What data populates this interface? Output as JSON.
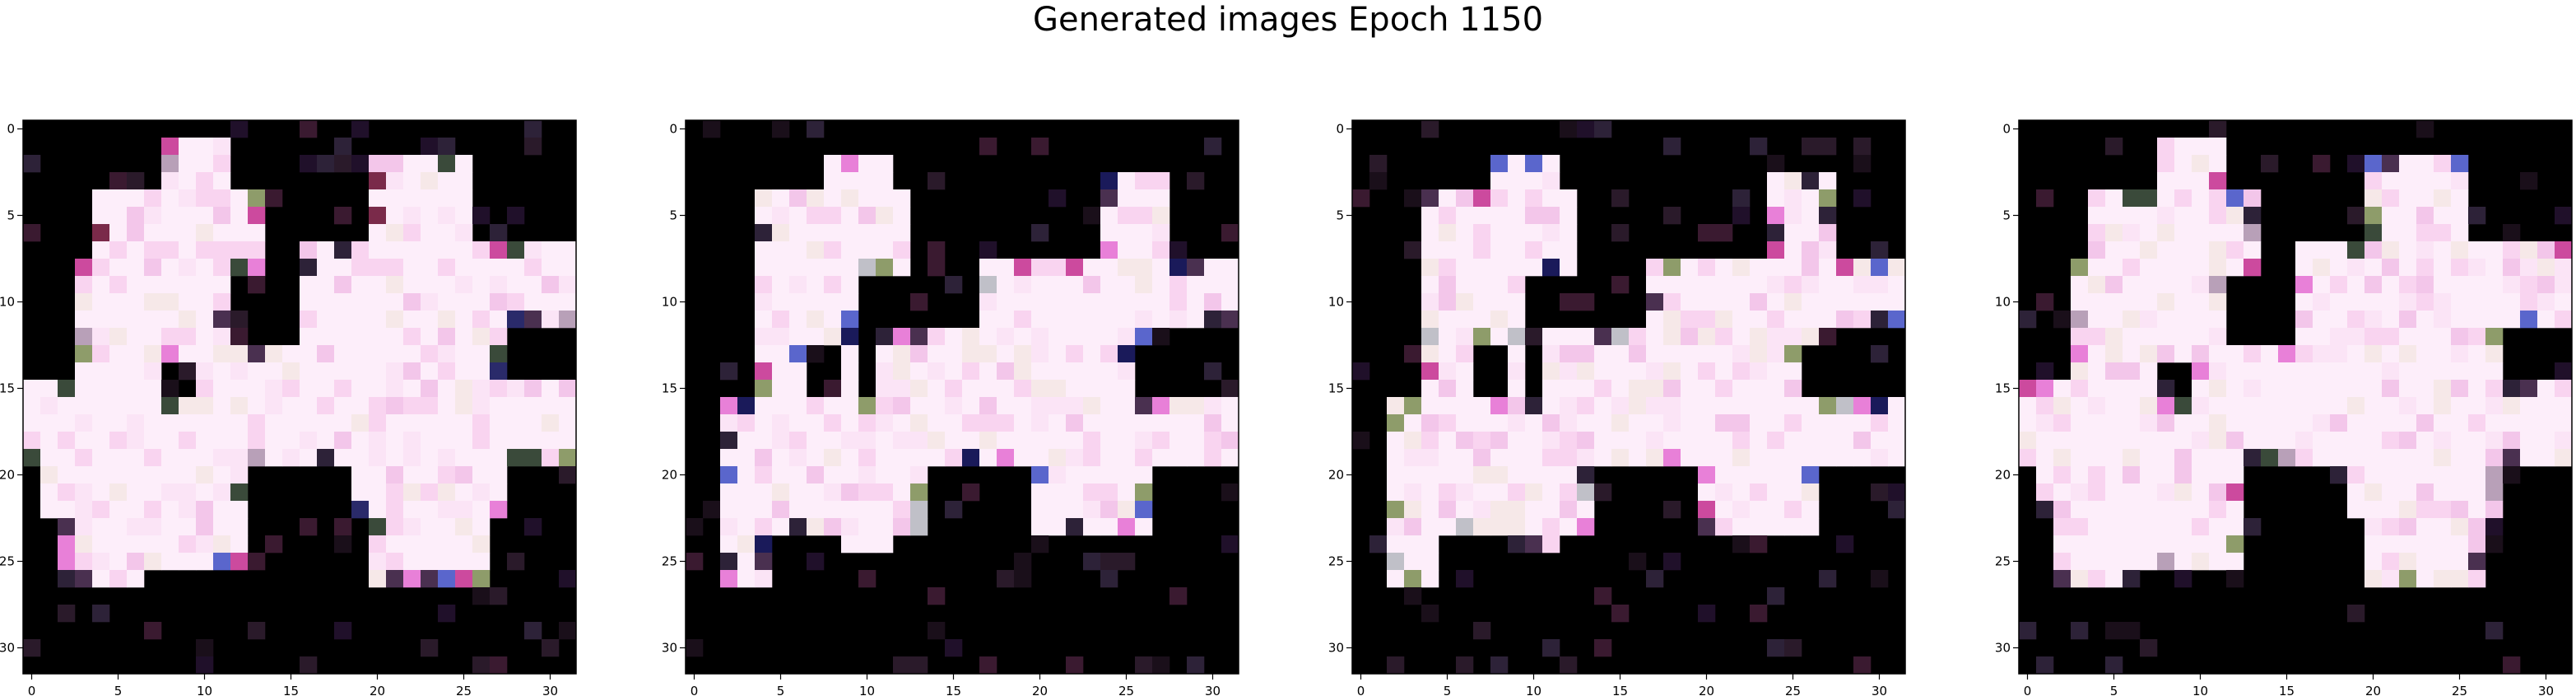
{
  "title": "Generated images Epoch 1150",
  "chart_data": [
    {
      "type": "heatmap",
      "panel": 1,
      "grid": false,
      "xlim": [
        -0.5,
        31.5
      ],
      "ylim": [
        31.5,
        -0.5
      ],
      "xticks": [
        0,
        5,
        10,
        15,
        20,
        25,
        30
      ],
      "yticks": [
        0,
        5,
        10,
        15,
        20,
        25,
        30
      ],
      "xtick_labels": [
        "0",
        "5",
        "10",
        "15",
        "20",
        "25",
        "30"
      ],
      "ytick_labels": [
        "0",
        "5",
        "10",
        "15",
        "20",
        "25",
        "30"
      ],
      "background_color": "#000000",
      "fill_color": "#fdeefa",
      "accent_colors": [
        "#cc4a9e",
        "#4a3050",
        "#2d2238",
        "#8e9c6a",
        "#3a4a3a",
        "#5a66cc",
        "#b8a0b8",
        "#e880d8",
        "#7a2a4a",
        "#2a2a6a"
      ],
      "description_shape": "pink-white blob spanning most of image, irregular bottom edge"
    },
    {
      "type": "heatmap",
      "panel": 2,
      "grid": false,
      "xlim": [
        -0.5,
        31.5
      ],
      "ylim": [
        31.5,
        -0.5
      ],
      "xticks": [
        0,
        5,
        10,
        15,
        20,
        25,
        30
      ],
      "yticks": [
        0,
        5,
        10,
        15,
        20,
        25,
        30
      ],
      "xtick_labels": [
        "0",
        "5",
        "10",
        "15",
        "20",
        "25",
        "30"
      ],
      "ytick_labels": [
        "0",
        "5",
        "10",
        "15",
        "20",
        "25",
        "30"
      ],
      "background_color": "#000000",
      "fill_color": "#fdeefa",
      "accent_colors": [
        "#cc4a9e",
        "#4a3050",
        "#2d2238",
        "#8e9c6a",
        "#5a66cc",
        "#e880d8",
        "#1a1a5a",
        "#c0c0c8"
      ]
    },
    {
      "type": "heatmap",
      "panel": 3,
      "grid": false,
      "xlim": [
        -0.5,
        31.5
      ],
      "ylim": [
        31.5,
        -0.5
      ],
      "xticks": [
        0,
        5,
        10,
        15,
        20,
        25,
        30
      ],
      "yticks": [
        0,
        5,
        10,
        15,
        20,
        25,
        30
      ],
      "xtick_labels": [
        "0",
        "5",
        "10",
        "15",
        "20",
        "25",
        "30"
      ],
      "ytick_labels": [
        "0",
        "5",
        "10",
        "15",
        "20",
        "25",
        "30"
      ],
      "background_color": "#000000",
      "fill_color": "#fdeefa",
      "accent_colors": [
        "#cc4a9e",
        "#4a3050",
        "#2d2238",
        "#8e9c6a",
        "#5a66cc",
        "#e880d8",
        "#1a1a5a",
        "#c0c0c8"
      ]
    },
    {
      "type": "heatmap",
      "panel": 4,
      "grid": false,
      "xlim": [
        -0.5,
        31.5
      ],
      "ylim": [
        31.5,
        -0.5
      ],
      "xticks": [
        0,
        5,
        10,
        15,
        20,
        25,
        30
      ],
      "yticks": [
        0,
        5,
        10,
        15,
        20,
        25,
        30
      ],
      "xtick_labels": [
        "0",
        "5",
        "10",
        "15",
        "20",
        "25",
        "30"
      ],
      "ytick_labels": [
        "0",
        "5",
        "10",
        "15",
        "20",
        "25",
        "30"
      ],
      "background_color": "#000000",
      "fill_color": "#fdeefa",
      "accent_colors": [
        "#cc4a9e",
        "#4a3050",
        "#2d2238",
        "#8e9c6a",
        "#3a4a3a",
        "#5a66cc",
        "#b8a0b8",
        "#e880d8"
      ]
    }
  ]
}
